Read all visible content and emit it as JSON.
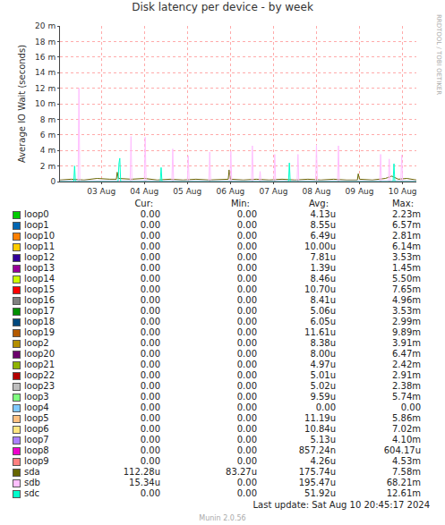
{
  "chart_data": {
    "type": "line",
    "title": "Disk latency per device - by week",
    "y_label": "Average IO Wait (seconds)",
    "side_text": "RRDTOOL / TOBI OETIKER",
    "footer": {
      "last_update": "Last update: Sat Aug 10 20:45:17 2024",
      "version": "Munin 2.0.56"
    },
    "legend_headers": [
      "Cur:",
      "Min:",
      "Avg:",
      "Max:"
    ],
    "grid": true,
    "xlim": [
      2.04,
      10.32
    ],
    "xticks": [
      {
        "value": 3,
        "label": "03 Aug"
      },
      {
        "value": 4,
        "label": "04 Aug"
      },
      {
        "value": 5,
        "label": "05 Aug"
      },
      {
        "value": 6,
        "label": "06 Aug"
      },
      {
        "value": 7,
        "label": "07 Aug"
      },
      {
        "value": 8,
        "label": "08 Aug"
      },
      {
        "value": 9,
        "label": "09 Aug"
      },
      {
        "value": 10,
        "label": "10 Aug"
      }
    ],
    "ylim": [
      0,
      0.02
    ],
    "yticks": [
      0,
      {
        "value": 0.002,
        "label": "2 m"
      },
      {
        "value": 0.004,
        "label": "4 m"
      },
      {
        "value": 0.006,
        "label": "6 m"
      },
      {
        "value": 0.008,
        "label": "8 m"
      },
      {
        "value": 0.01,
        "label": "10 m"
      },
      {
        "value": 0.012,
        "label": "12 m"
      },
      {
        "value": 0.014,
        "label": "14 m"
      },
      {
        "value": 0.016,
        "label": "16 m"
      },
      {
        "value": 0.018,
        "label": "18 m"
      },
      {
        "value": 0.02,
        "label": "20 m"
      }
    ],
    "series": [
      {
        "name": "loop0",
        "color": "#00cc00",
        "x": [
          2.04,
          10.32
        ],
        "values": [
          0,
          0
        ],
        "stats": [
          "0.00",
          "0.00",
          "4.13u",
          "2.23m"
        ]
      },
      {
        "name": "loop1",
        "color": "#0066b3",
        "x": [
          2.04,
          10.32
        ],
        "values": [
          0,
          0
        ],
        "stats": [
          "0.00",
          "0.00",
          "8.55u",
          "6.57m"
        ]
      },
      {
        "name": "loop10",
        "color": "#ff8000",
        "x": [
          2.04,
          10.32
        ],
        "values": [
          0,
          0
        ],
        "stats": [
          "0.00",
          "0.00",
          "6.49u",
          "2.81m"
        ]
      },
      {
        "name": "loop11",
        "color": "#ffcc00",
        "x": [
          2.04,
          10.32
        ],
        "values": [
          0,
          0
        ],
        "stats": [
          "0.00",
          "0.00",
          "10.00u",
          "6.14m"
        ]
      },
      {
        "name": "loop12",
        "color": "#330099",
        "x": [
          2.04,
          10.32
        ],
        "values": [
          0,
          0
        ],
        "stats": [
          "0.00",
          "0.00",
          "7.81u",
          "3.53m"
        ]
      },
      {
        "name": "loop13",
        "color": "#990099",
        "x": [
          2.04,
          10.32
        ],
        "values": [
          0,
          0
        ],
        "stats": [
          "0.00",
          "0.00",
          "1.39u",
          "1.45m"
        ]
      },
      {
        "name": "loop14",
        "color": "#ccff00",
        "x": [
          2.04,
          10.32
        ],
        "values": [
          0,
          0
        ],
        "stats": [
          "0.00",
          "0.00",
          "8.46u",
          "5.50m"
        ]
      },
      {
        "name": "loop15",
        "color": "#ff0000",
        "x": [
          2.04,
          10.32
        ],
        "values": [
          0,
          0
        ],
        "stats": [
          "0.00",
          "0.00",
          "10.70u",
          "7.65m"
        ]
      },
      {
        "name": "loop16",
        "color": "#808080",
        "x": [
          2.04,
          10.32
        ],
        "values": [
          0,
          0
        ],
        "stats": [
          "0.00",
          "0.00",
          "8.41u",
          "4.96m"
        ]
      },
      {
        "name": "loop17",
        "color": "#008f00",
        "x": [
          2.04,
          10.32
        ],
        "values": [
          0,
          0
        ],
        "stats": [
          "0.00",
          "0.00",
          "5.06u",
          "3.53m"
        ]
      },
      {
        "name": "loop18",
        "color": "#00487d",
        "x": [
          2.04,
          10.32
        ],
        "values": [
          0,
          0
        ],
        "stats": [
          "0.00",
          "0.00",
          "6.05u",
          "2.99m"
        ]
      },
      {
        "name": "loop19",
        "color": "#b35a00",
        "x": [
          2.04,
          10.32
        ],
        "values": [
          0,
          0
        ],
        "stats": [
          "0.00",
          "0.00",
          "11.61u",
          "9.89m"
        ]
      },
      {
        "name": "loop2",
        "color": "#b38f00",
        "x": [
          2.04,
          10.32
        ],
        "values": [
          0,
          0
        ],
        "stats": [
          "0.00",
          "0.00",
          "8.38u",
          "3.91m"
        ]
      },
      {
        "name": "loop20",
        "color": "#6b006b",
        "x": [
          2.04,
          10.32
        ],
        "values": [
          0,
          0
        ],
        "stats": [
          "0.00",
          "0.00",
          "8.00u",
          "6.47m"
        ]
      },
      {
        "name": "loop21",
        "color": "#8fb300",
        "x": [
          2.04,
          10.32
        ],
        "values": [
          0,
          0
        ],
        "stats": [
          "0.00",
          "0.00",
          "4.97u",
          "2.42m"
        ]
      },
      {
        "name": "loop22",
        "color": "#b30000",
        "x": [
          2.04,
          10.32
        ],
        "values": [
          0,
          0
        ],
        "stats": [
          "0.00",
          "0.00",
          "5.01u",
          "2.91m"
        ]
      },
      {
        "name": "loop23",
        "color": "#bebebe",
        "x": [
          2.04,
          10.32
        ],
        "values": [
          0,
          0
        ],
        "stats": [
          "0.00",
          "0.00",
          "5.02u",
          "2.38m"
        ]
      },
      {
        "name": "loop3",
        "color": "#80ff80",
        "x": [
          2.04,
          10.32
        ],
        "values": [
          0,
          0
        ],
        "stats": [
          "0.00",
          "0.00",
          "9.59u",
          "5.74m"
        ]
      },
      {
        "name": "loop4",
        "color": "#80c9ff",
        "x": [
          2.04,
          10.32
        ],
        "values": [
          0,
          0
        ],
        "stats": [
          "0.00",
          "0.00",
          "0.00",
          "0.00"
        ]
      },
      {
        "name": "loop5",
        "color": "#ffc080",
        "x": [
          2.04,
          10.32
        ],
        "values": [
          0,
          0
        ],
        "stats": [
          "0.00",
          "0.00",
          "11.19u",
          "5.86m"
        ]
      },
      {
        "name": "loop6",
        "color": "#ffe680",
        "x": [
          2.04,
          10.32
        ],
        "values": [
          0,
          0
        ],
        "stats": [
          "0.00",
          "0.00",
          "10.84u",
          "7.02m"
        ]
      },
      {
        "name": "loop7",
        "color": "#aa80ff",
        "x": [
          2.04,
          10.32
        ],
        "values": [
          0,
          0
        ],
        "stats": [
          "0.00",
          "0.00",
          "5.13u",
          "4.10m"
        ]
      },
      {
        "name": "loop8",
        "color": "#ee00cc",
        "x": [
          2.04,
          10.32
        ],
        "values": [
          0,
          0
        ],
        "stats": [
          "0.00",
          "0.00",
          "857.24n",
          "604.17u"
        ]
      },
      {
        "name": "loop9",
        "color": "#ff8080",
        "x": [
          2.04,
          10.32
        ],
        "values": [
          0,
          0
        ],
        "stats": [
          "0.00",
          "0.00",
          "4.26u",
          "4.53m"
        ]
      },
      {
        "name": "sda",
        "color": "#666600",
        "x": [
          2.04,
          2.3,
          2.6,
          2.9,
          3.2,
          3.35,
          3.37,
          3.4,
          3.7,
          4.0,
          4.3,
          4.6,
          4.9,
          5.2,
          5.5,
          5.8,
          5.95,
          5.97,
          6.0,
          6.3,
          6.6,
          6.9,
          7.2,
          7.5,
          7.8,
          8.1,
          8.4,
          8.7,
          8.95,
          8.97,
          9.0,
          9.3,
          9.6,
          9.75,
          9.9,
          10.1,
          10.32
        ],
        "values": [
          0.0002,
          0.0003,
          0.0002,
          0.0004,
          0.0003,
          0.0003,
          0.0012,
          0.0004,
          0.0003,
          0.0004,
          0.0002,
          0.0003,
          0.0002,
          0.0003,
          0.0002,
          0.0003,
          0.0003,
          0.0015,
          0.0003,
          0.0002,
          0.0003,
          0.0002,
          0.0003,
          0.0002,
          0.0003,
          0.0002,
          0.0003,
          0.0002,
          0.0002,
          0.001,
          0.0003,
          0.0002,
          0.0004,
          0.0007,
          0.0003,
          0.0004,
          0.0002
        ],
        "stats": [
          "112.28u",
          "83.27u",
          "175.74u",
          "7.58m"
        ]
      },
      {
        "name": "sdb",
        "color": "#ffbfff",
        "x": [
          2.04,
          2.3,
          2.46,
          2.48,
          2.5,
          2.9,
          3.3,
          3.67,
          3.69,
          3.71,
          4.0,
          4.02,
          4.04,
          4.3,
          4.64,
          4.66,
          4.68,
          5.0,
          5.02,
          5.04,
          5.5,
          5.52,
          5.54,
          5.99,
          6.01,
          6.03,
          6.49,
          6.51,
          6.53,
          6.67,
          6.69,
          6.71,
          7.01,
          7.03,
          7.05,
          7.55,
          7.57,
          7.59,
          7.98,
          8.0,
          8.02,
          8.49,
          8.51,
          8.53,
          9.0,
          9.47,
          9.49,
          9.51,
          9.67,
          9.69,
          9.71,
          9.96,
          9.98,
          10.0,
          10.32
        ],
        "values": [
          0.0001,
          0.0001,
          0.0001,
          0.012,
          0.0001,
          0.0001,
          0.0001,
          0.0001,
          0.0058,
          0.0001,
          0.0001,
          0.0057,
          0.0001,
          0.0001,
          0.0001,
          0.0042,
          0.0001,
          0.0001,
          0.0033,
          0.0001,
          0.0001,
          0.0038,
          0.0001,
          0.0001,
          0.0039,
          0.0001,
          0.0001,
          0.0046,
          0.0001,
          0.0001,
          0.0013,
          0.0001,
          0.0001,
          0.0035,
          0.0001,
          0.0001,
          0.0035,
          0.0001,
          0.0001,
          0.0047,
          0.0001,
          0.0001,
          0.0046,
          0.0001,
          0.0001,
          0.0001,
          0.0035,
          0.0001,
          0.0001,
          0.0029,
          0.0001,
          0.0001,
          0.0034,
          0.0001,
          0.0001
        ],
        "stats": [
          "15.34u",
          "0.00",
          "195.47u",
          "68.21m"
        ]
      },
      {
        "name": "sdc",
        "color": "#00ffcc",
        "x": [
          2.04,
          2.36,
          2.38,
          2.4,
          2.8,
          3.39,
          3.41,
          3.43,
          3.45,
          4.37,
          4.39,
          4.41,
          5.5,
          6.5,
          7.35,
          7.37,
          7.39,
          8.5,
          9.78,
          9.8,
          9.82,
          10.32
        ],
        "values": [
          0,
          0,
          0.002,
          0,
          0,
          0,
          0.0023,
          0.003,
          0,
          0,
          0.0018,
          0,
          0,
          0,
          0,
          0.0024,
          0,
          0,
          0,
          0.0023,
          0,
          0
        ],
        "stats": [
          "0.00",
          "0.00",
          "51.92u",
          "12.61m"
        ]
      }
    ]
  }
}
